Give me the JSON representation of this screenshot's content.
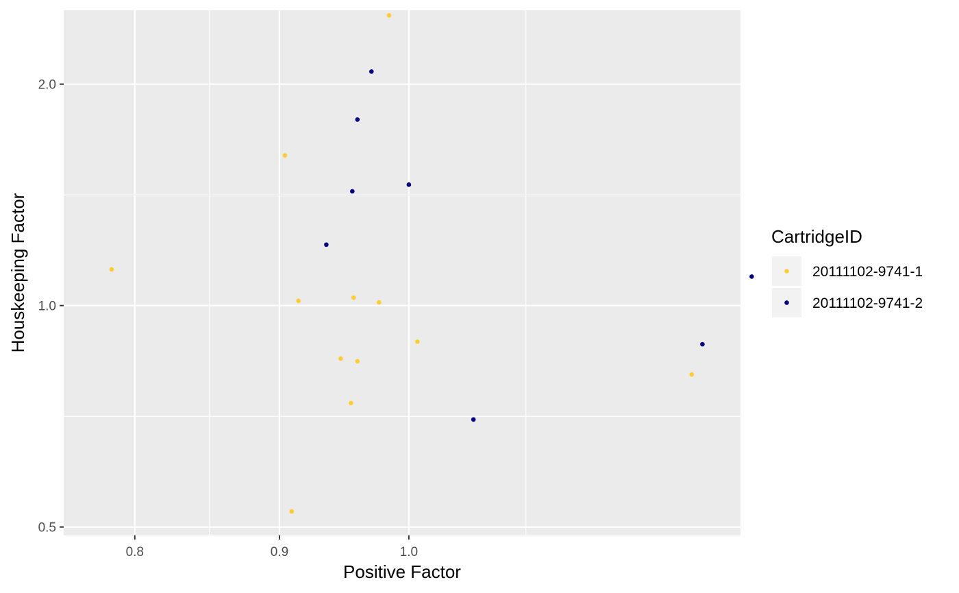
{
  "chart_data": {
    "type": "scatter",
    "title": "",
    "xlabel": "Positive Factor",
    "ylabel": "Houskeeping Factor",
    "x_scale": "log",
    "y_scale": "log",
    "xlim": [
      0.755,
      1.31
    ],
    "ylim": [
      0.487,
      2.52
    ],
    "x_ticks": [
      {
        "value": 0.8,
        "label": "0.8"
      },
      {
        "value": 0.9,
        "label": "0.9"
      },
      {
        "value": 1.0,
        "label": "1.0"
      }
    ],
    "x_minor_ticks": [
      0.85,
      1.1
    ],
    "y_ticks": [
      {
        "value": 0.5,
        "label": "0.5"
      },
      {
        "value": 1.0,
        "label": "1.0"
      },
      {
        "value": 2.0,
        "label": "2.0"
      }
    ],
    "y_minor_ticks": [
      0.707,
      1.414
    ],
    "grid": true,
    "legend": {
      "title": "CartridgeID",
      "position": "right"
    },
    "series": [
      {
        "name": "20111102-9741-1",
        "color": "#ffcc33",
        "points": [
          {
            "x": 0.785,
            "y": 1.12
          },
          {
            "x": 0.904,
            "y": 1.6
          },
          {
            "x": 0.909,
            "y": 0.525
          },
          {
            "x": 0.914,
            "y": 1.015
          },
          {
            "x": 0.946,
            "y": 0.847
          },
          {
            "x": 0.954,
            "y": 0.737
          },
          {
            "x": 0.956,
            "y": 1.025
          },
          {
            "x": 0.959,
            "y": 0.84
          },
          {
            "x": 0.976,
            "y": 1.01
          },
          {
            "x": 0.984,
            "y": 2.48
          },
          {
            "x": 1.007,
            "y": 0.893
          },
          {
            "x": 1.259,
            "y": 0.806
          }
        ]
      },
      {
        "name": "20111102-9741-2",
        "color": "#000080",
        "points": [
          {
            "x": 0.935,
            "y": 1.21
          },
          {
            "x": 0.955,
            "y": 1.43
          },
          {
            "x": 0.959,
            "y": 1.79
          },
          {
            "x": 0.97,
            "y": 2.08
          },
          {
            "x": 1.0,
            "y": 1.46
          },
          {
            "x": 1.054,
            "y": 0.7
          },
          {
            "x": 1.27,
            "y": 0.886
          },
          {
            "x": 1.322,
            "y": 1.095
          }
        ]
      }
    ]
  }
}
